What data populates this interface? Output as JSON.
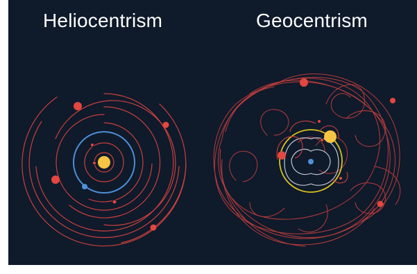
{
  "titles": {
    "left": "Heliocentrism",
    "right": "Geocentrism"
  },
  "colors": {
    "background": "#0f1a2b",
    "sun": "#f7c544",
    "earth": "#4f91d8",
    "earth_orbit": "#4d8fd6",
    "planet": "#e3473f",
    "orbit": "#c9403c",
    "sun_path": "#d8c21c",
    "text": "#ffffff"
  },
  "icons": [
    "sun-icon",
    "earth-icon",
    "planet-icon"
  ]
}
